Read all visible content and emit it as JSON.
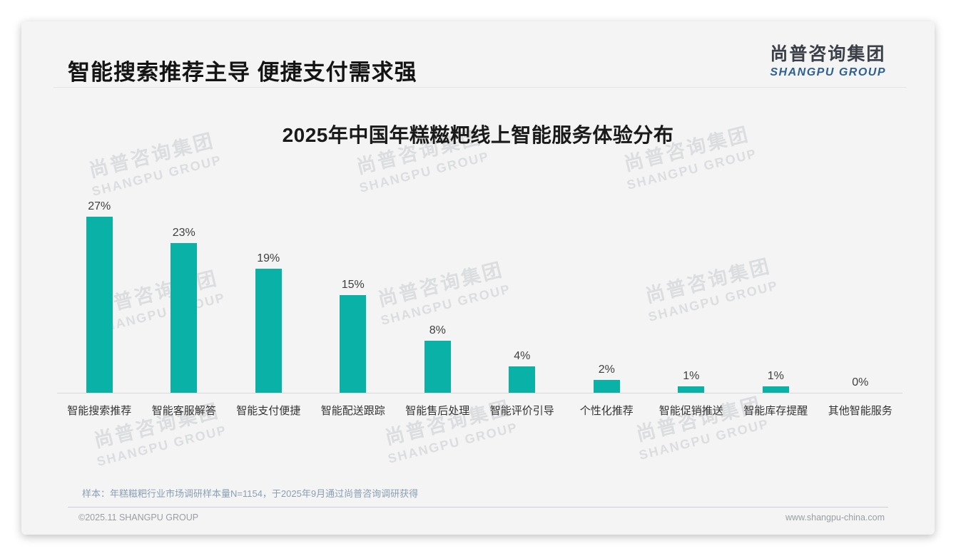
{
  "header": {
    "title": "智能搜索推荐主导 便捷支付需求强",
    "logo": {
      "cn": "尚普咨询集团",
      "en": "SHANGPU GROUP"
    }
  },
  "chart_data": {
    "type": "bar",
    "title": "2025年中国年糕糍粑线上智能服务体验分布",
    "categories": [
      "智能搜索推荐",
      "智能客服解答",
      "智能支付便捷",
      "智能配送跟踪",
      "智能售后处理",
      "智能评价引导",
      "个性化推荐",
      "智能促销推送",
      "智能库存提醒",
      "其他智能服务"
    ],
    "values": [
      27,
      23,
      19,
      15,
      8,
      4,
      2,
      1,
      1,
      0
    ],
    "unit": "%",
    "value_labels": [
      "27%",
      "23%",
      "19%",
      "15%",
      "8%",
      "4%",
      "2%",
      "1%",
      "1%",
      "0%"
    ],
    "bar_color": "#0ab1a7",
    "xlabel": "",
    "ylabel": "",
    "ylim": [
      0,
      30
    ],
    "grid": false,
    "legend": "none"
  },
  "footer": {
    "sample_note": "样本：年糕糍粑行业市场调研样本量N=1154，于2025年9月通过尚普咨询调研获得",
    "copyright": "©2025.11 SHANGPU GROUP",
    "website": "www.shangpu-china.com"
  },
  "watermark": {
    "cn": "尚普咨询集团",
    "en": "SHANGPU GROUP"
  }
}
